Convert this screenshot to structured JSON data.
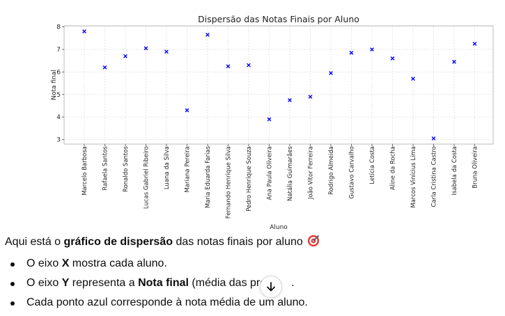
{
  "chart_data": {
    "type": "scatter",
    "title": "Dispersão das Notas Finais por Aluno",
    "xlabel": "Aluno",
    "ylabel": "Nota final",
    "ylim": [
      2.8,
      8.05
    ],
    "yticks": [
      3,
      4,
      5,
      6,
      7,
      8
    ],
    "grid": true,
    "marker": "x",
    "color": "#0000ff",
    "categories": [
      "Marcelo Barbosa",
      "Rafaela Santos",
      "Ronaldo Santos",
      "Lucas Gabriel Ribeiro",
      "Luana da Silva",
      "Mariana Pereira",
      "Maria Eduarda Farias",
      "Fernando Henrique Silva",
      "Pedro Henrique Souza",
      "Ana Paula Oliveira",
      "Natália Guimarães",
      "João Vitor Ferreira",
      "Rodrigo Almeida",
      "Gustavo Carvalho",
      "Letícia Costa",
      "Aline da Rocha",
      "Marcos Vinícius Lima",
      "Carla Cristina Castro",
      "Isabela da Costa",
      "Bruna Oliveira"
    ],
    "values": [
      7.8,
      6.2,
      6.7,
      7.05,
      6.9,
      4.3,
      7.65,
      6.25,
      6.3,
      3.9,
      4.75,
      4.9,
      5.95,
      6.85,
      7.0,
      6.6,
      5.7,
      3.05,
      6.45,
      7.25
    ]
  },
  "message": {
    "intro_before": "Aqui está o ",
    "intro_bold": "gráfico de dispersão",
    "intro_after": " das notas finais por aluno",
    "emoji_icon": "direct-hit-icon",
    "bullets": [
      {
        "before": "O eixo ",
        "bold": "X",
        "after": " mostra cada aluno."
      },
      {
        "before": "O eixo ",
        "bold": "Y",
        "after": " representa a ",
        "bold2": "Nota final",
        "after2": " (média das pro",
        "after3": "."
      },
      {
        "before": "Cada ponto azul corresponde à nota média de um aluno."
      }
    ]
  },
  "scroll_button": {
    "icon": "arrow-down-icon"
  }
}
